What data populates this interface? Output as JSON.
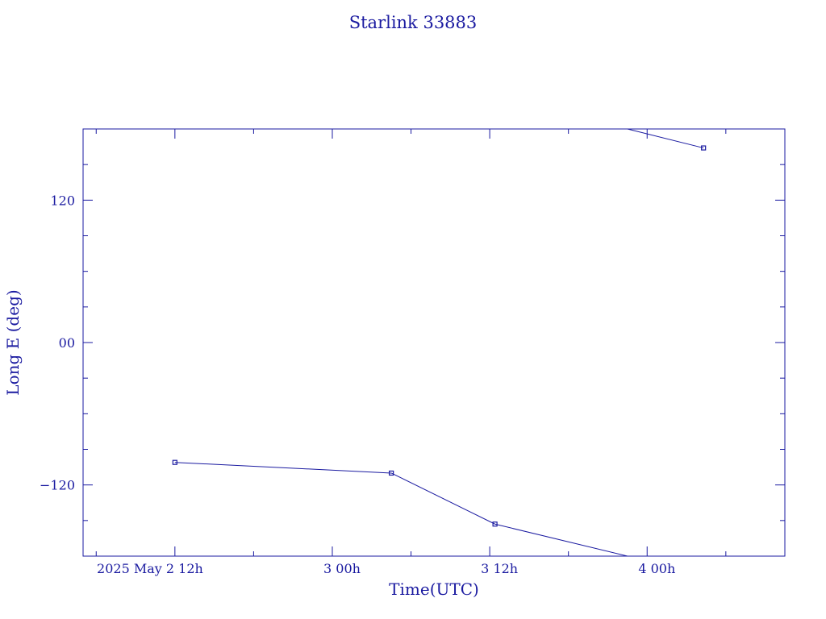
{
  "chart_data": {
    "type": "line",
    "title": "Starlink 33883",
    "xlabel": "Time(UTC)",
    "ylabel": "Long E (deg)",
    "color": "#1a1aa0",
    "x_unit": "hours since 2025 May 2 00h UTC",
    "xlim": [
      5,
      58.5
    ],
    "ylim": [
      -180,
      180
    ],
    "x_ticks": [
      {
        "value": 12,
        "label": "2025 May  2  12h"
      },
      {
        "value": 24,
        "label": "3  00h"
      },
      {
        "value": 36,
        "label": "3  12h"
      },
      {
        "value": 48,
        "label": "4  00h"
      }
    ],
    "y_ticks": [
      {
        "value": 120,
        "label": "120"
      },
      {
        "value": 0,
        "label": "00"
      },
      {
        "value": -120,
        "label": "−120"
      }
    ],
    "points": [
      {
        "x": 12.0,
        "y": -101
      },
      {
        "x": 28.5,
        "y": -110
      },
      {
        "x": 36.4,
        "y": -153
      },
      {
        "x": 52.3,
        "y": 164
      }
    ],
    "wrap_crossings": [
      {
        "x": 46.5,
        "y": -180
      },
      {
        "x": 46.5,
        "y": 180
      }
    ]
  }
}
